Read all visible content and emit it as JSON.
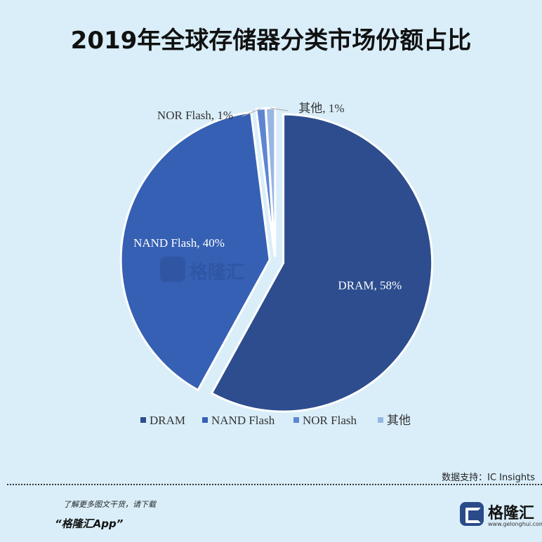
{
  "title": "2019年全球存储器分类市场份额占比",
  "chart_data": {
    "type": "pie",
    "categories": [
      "DRAM",
      "NAND Flash",
      "NOR Flash",
      "其他"
    ],
    "values": [
      58,
      40,
      1,
      1
    ],
    "labels": [
      "DRAM, 58%",
      "NAND Flash, 40%",
      "NOR Flash, 1%",
      "其他, 1%"
    ],
    "colors": [
      "#2d4d8e",
      "#3560b4",
      "#5d85d2",
      "#98b6e2"
    ],
    "legend": {
      "placement": "bottom",
      "entries": [
        "DRAM",
        "NAND Flash",
        "NOR Flash",
        "其他"
      ]
    },
    "exploded": true
  },
  "source": "数据支持：IC Insights",
  "promo": "了解更多图文干货，请下载",
  "app": "“格隆汇App”",
  "logo": {
    "text": "格隆汇",
    "url": "www.gelonghui.com"
  },
  "watermark": "格隆汇"
}
